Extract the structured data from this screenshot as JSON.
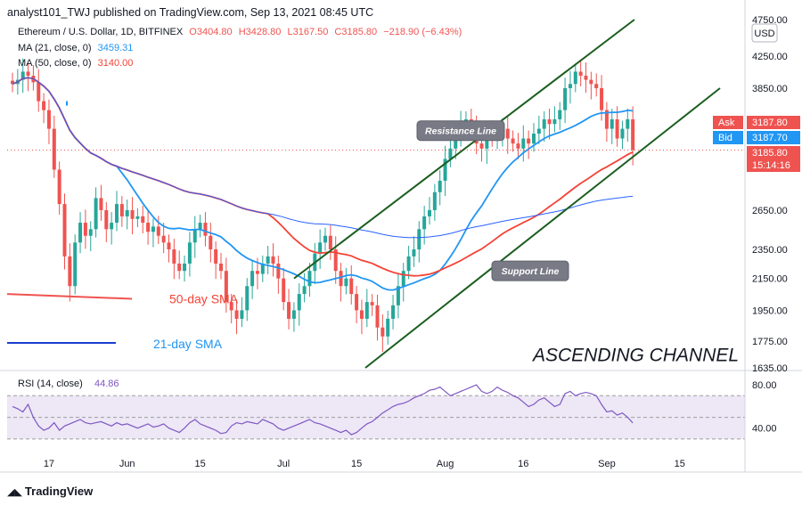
{
  "header": {
    "publisher_line": "analyst101_TWJ published on TradingView.com, Sep 13, 2021 08:45 UTC"
  },
  "legend": {
    "symbol": "Ethereum / U.S. Dollar, 1D, BITFINEX",
    "open": "O3404.80",
    "high": "H3428.80",
    "low": "L3167.50",
    "close": "C3185.80",
    "change": "−218.90 (−6.43%)",
    "ma21_label": "MA (21, close, 0)",
    "ma21_value": "3459.31",
    "ma50_label": "MA (50, close, 0)",
    "ma50_value": "3140.00"
  },
  "brand": "TradingView",
  "colors": {
    "up": "#26a69a",
    "down": "#ef5350",
    "ma21": "#2196f3",
    "ma50": "#f44336",
    "ma200": "#2962ff",
    "channel": "#1b5e20",
    "rsi": "#7e57c2",
    "rsi_band": "#ede7f6"
  },
  "chart_data": {
    "type": "candlestick",
    "symbol": "Ethereum / U.S. Dollar, 1D, BITFINEX",
    "currency": "USD",
    "price_axis": {
      "scale": "log",
      "ylim": [
        1635,
        4750
      ],
      "ticks": [
        "4750.00",
        "4250.00",
        "3850.00",
        "2650.00",
        "2350.00",
        "2150.00",
        "1950.00",
        "1775.00",
        "1635.00"
      ]
    },
    "x_ticks": [
      "17",
      "Jun",
      "15",
      "Jul",
      "15",
      "Aug",
      "16",
      "Sep",
      "15"
    ],
    "x_tick_dates": [
      "2021-05-17",
      "2021-06-01",
      "2021-06-15",
      "2021-07-01",
      "2021-07-15",
      "2021-08-01",
      "2021-08-16",
      "2021-09-01",
      "2021-09-15"
    ],
    "date_range": [
      "2021-05-10",
      "2021-09-13"
    ],
    "closes": [
      3900,
      3950,
      4050,
      4000,
      3920,
      3700,
      3600,
      3400,
      3000,
      2700,
      2300,
      2100,
      2400,
      2550,
      2450,
      2500,
      2750,
      2650,
      2500,
      2550,
      2700,
      2600,
      2650,
      2580,
      2600,
      2550,
      2480,
      2520,
      2450,
      2400,
      2350,
      2250,
      2200,
      2250,
      2400,
      2500,
      2550,
      2450,
      2350,
      2250,
      2200,
      2000,
      1950,
      1900,
      1950,
      2100,
      2200,
      2180,
      2250,
      2300,
      2250,
      2150,
      2000,
      1900,
      1950,
      2050,
      2100,
      2200,
      2320,
      2400,
      2450,
      2350,
      2200,
      2100,
      2150,
      2050,
      1950,
      1900,
      2000,
      1980,
      1850,
      1800,
      1900,
      1980,
      2100,
      2200,
      2300,
      2350,
      2500,
      2600,
      2650,
      2800,
      2900,
      3100,
      3200,
      3350,
      3450,
      3500,
      3400,
      3250,
      3200,
      3350,
      3300,
      3350,
      3400,
      3300,
      3250,
      3200,
      3300,
      3250,
      3350,
      3400,
      3500,
      3450,
      3500,
      3600,
      3850,
      3900,
      4050,
      4000,
      3950,
      3900,
      3850,
      3600,
      3400,
      3500,
      3300,
      3400,
      3500,
      3185.8
    ],
    "ma21_value": 3459.31,
    "ma50_value": 3140.0,
    "price_tags": [
      {
        "label": "Ask",
        "value": "3187.80",
        "color": "#ef5350"
      },
      {
        "label": "Bid",
        "value": "3187.70",
        "color": "#2196f3"
      },
      {
        "label": "",
        "value": "3185.80",
        "color": "#ef5350"
      },
      {
        "label": "",
        "value": "15:14:16",
        "color": "#ef5350"
      }
    ],
    "annotations": {
      "resistance_label": "Resistance Line",
      "support_label": "Support Line",
      "ma50_label": "50-day SMA",
      "ma21_label": "21-day SMA",
      "title": "ASCENDING CHANNEL"
    },
    "rsi": {
      "label": "RSI (14, close)",
      "value": "44.86",
      "ylim": [
        20,
        90
      ],
      "ticks": [
        "80.00",
        "40.00"
      ],
      "band": [
        30,
        70
      ],
      "values": [
        60,
        58,
        55,
        62,
        50,
        42,
        38,
        40,
        45,
        38,
        42,
        44,
        46,
        48,
        45,
        44,
        45,
        46,
        44,
        42,
        45,
        43,
        44,
        42,
        40,
        42,
        44,
        41,
        42,
        44,
        40,
        38,
        36,
        40,
        45,
        48,
        44,
        42,
        40,
        38,
        35,
        36,
        42,
        45,
        44,
        46,
        45,
        44,
        48,
        46,
        44,
        40,
        38,
        40,
        42,
        44,
        46,
        48,
        45,
        44,
        42,
        40,
        38,
        36,
        38,
        34,
        36,
        40,
        44,
        46,
        50,
        54,
        57,
        60,
        62,
        63,
        65,
        68,
        70,
        72,
        75,
        76,
        78,
        74,
        70,
        72,
        74,
        76,
        78,
        80,
        74,
        72,
        74,
        78,
        75,
        73,
        70,
        68,
        64,
        60,
        62,
        66,
        68,
        64,
        60,
        62,
        72,
        74,
        70,
        72,
        73,
        72,
        70,
        62,
        55,
        56,
        52,
        54,
        50,
        44.86
      ]
    }
  }
}
